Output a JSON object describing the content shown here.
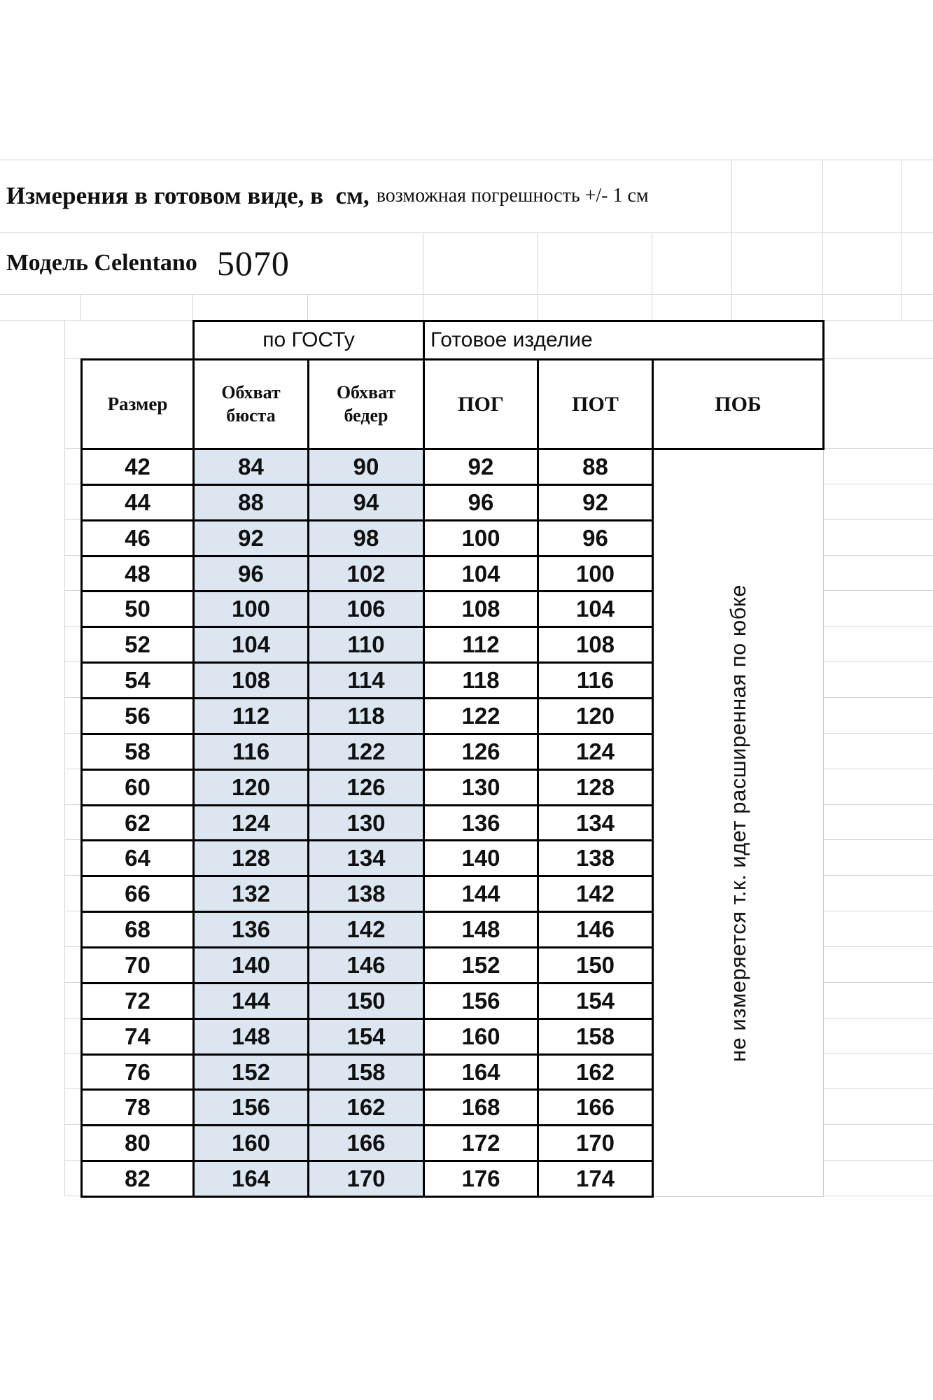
{
  "title": {
    "main": "Измерения в готовом виде, в  см,",
    "note": "возможная погрешность +/- 1 см"
  },
  "model": {
    "label": "Модель Celentano",
    "number": "5070"
  },
  "table": {
    "band": {
      "gost": "по ГОСТу",
      "ready": "Готовое изделие"
    },
    "headers": {
      "size": "Размер",
      "bust": "Обхват бюста",
      "hips": "Обхват бедер",
      "pog": "ПОГ",
      "pot": "ПОТ",
      "pob": "ПОБ"
    },
    "pob_note": "не измеряется т.к. идет расширенная по юбке",
    "rows": [
      [
        42,
        84,
        90,
        92,
        88
      ],
      [
        44,
        88,
        94,
        96,
        92
      ],
      [
        46,
        92,
        98,
        100,
        96
      ],
      [
        48,
        96,
        102,
        104,
        100
      ],
      [
        50,
        100,
        106,
        108,
        104
      ],
      [
        52,
        104,
        110,
        112,
        108
      ],
      [
        54,
        108,
        114,
        118,
        116
      ],
      [
        56,
        112,
        118,
        122,
        120
      ],
      [
        58,
        116,
        122,
        126,
        124
      ],
      [
        60,
        120,
        126,
        130,
        128
      ],
      [
        62,
        124,
        130,
        136,
        134
      ],
      [
        64,
        128,
        134,
        140,
        138
      ],
      [
        66,
        132,
        138,
        144,
        142
      ],
      [
        68,
        136,
        142,
        148,
        146
      ],
      [
        70,
        140,
        146,
        152,
        150
      ],
      [
        72,
        144,
        150,
        156,
        154
      ],
      [
        74,
        148,
        154,
        160,
        158
      ],
      [
        76,
        152,
        158,
        164,
        162
      ],
      [
        78,
        156,
        162,
        168,
        166
      ],
      [
        80,
        160,
        166,
        172,
        170
      ],
      [
        82,
        164,
        170,
        176,
        174
      ]
    ]
  },
  "colors": {
    "highlight": "#dce6f1",
    "table_border": "#000000",
    "gridline": "#d6d6d6"
  }
}
